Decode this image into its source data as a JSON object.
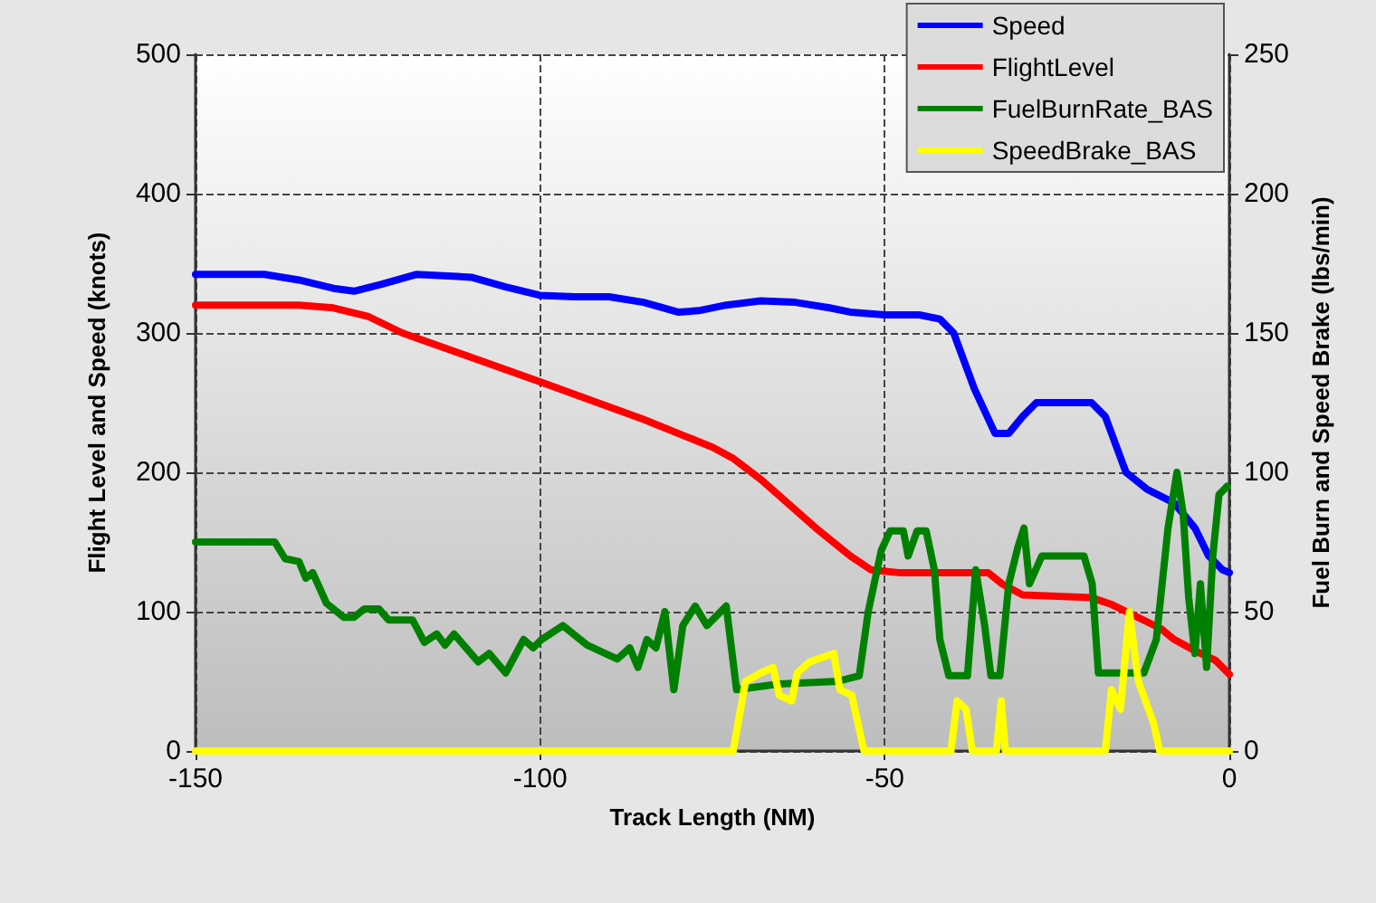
{
  "chart_data": {
    "type": "line",
    "xlabel": "Track Length (NM)",
    "ylabel": "Flight Level and Speed (knots)",
    "y2label": "Fuel Burn and Speed Brake (lbs/min)",
    "xlim": [
      -150,
      0
    ],
    "xticks": [
      -150,
      -100,
      -50,
      0
    ],
    "ylim": [
      0,
      500
    ],
    "yticks": [
      0,
      100,
      200,
      300,
      400,
      500
    ],
    "y2lim": [
      0,
      250
    ],
    "y2ticks": [
      0,
      50,
      100,
      150,
      200,
      250
    ],
    "grid": true,
    "legend": "top right",
    "marker": "none",
    "line_style": "solid",
    "series": [
      {
        "name": "Speed",
        "color": "#0000ff",
        "x": [
          -150,
          -140,
          -135,
          -130,
          -127,
          -123,
          -118,
          -110,
          -105,
          -100,
          -95,
          -90,
          -85,
          -80,
          -77,
          -73,
          -68,
          -63,
          -58,
          -55,
          -50,
          -45,
          -42,
          -40,
          -37,
          -34,
          -32,
          -30,
          -28,
          -20,
          -18,
          -15,
          -12,
          -8,
          -5,
          -3,
          -1,
          0
        ],
        "values": [
          342,
          342,
          338,
          332,
          330,
          335,
          342,
          340,
          333,
          327,
          326,
          326,
          322,
          315,
          316,
          320,
          323,
          322,
          318,
          315,
          313,
          313,
          310,
          300,
          260,
          228,
          228,
          240,
          250,
          250,
          240,
          200,
          188,
          178,
          160,
          140,
          130,
          128
        ]
      },
      {
        "name": "FlightLevel",
        "color": "#ff0000",
        "x": [
          -150,
          -135,
          -130,
          -125,
          -120,
          -100,
          -85,
          -75,
          -72,
          -68,
          -60,
          -55,
          -52,
          -48,
          -35,
          -33,
          -30,
          -20,
          -17,
          -10,
          -8,
          -5,
          -2,
          0
        ],
        "values": [
          320,
          320,
          318,
          312,
          300,
          265,
          238,
          218,
          210,
          195,
          160,
          140,
          130,
          128,
          128,
          120,
          112,
          110,
          105,
          88,
          80,
          72,
          65,
          55
        ]
      },
      {
        "name": "FuelBurnRate_BAS",
        "color": "#008000",
        "axis": "y2",
        "x": [
          -150,
          -138.5,
          -137,
          -135,
          -134,
          -133,
          -131,
          -128.5,
          -127,
          -125.5,
          -123.4,
          -122,
          -118.5,
          -116.8,
          -115,
          -113.8,
          -112.5,
          -109,
          -107.4,
          -105,
          -102.4,
          -101,
          -99.8,
          -96.7,
          -93.2,
          -88.8,
          -87,
          -85.8,
          -84.5,
          -83.2,
          -81.9,
          -80.6,
          -79.3,
          -77.5,
          -75.8,
          -73,
          -71.5,
          -65.5,
          -56.8,
          -53.7,
          -52.4,
          -50.5,
          -49.2,
          -47.3,
          -46.6,
          -45.3,
          -44,
          -42.8,
          -42,
          -40.7,
          -38,
          -36.8,
          -35.5,
          -34.6,
          -33.3,
          -32,
          -30.7,
          -29.8,
          -29,
          -27.2,
          -21.1,
          -19.9,
          -19,
          -12.4,
          -10.6,
          -8.9,
          -7.6,
          -6.7,
          -5.9,
          -5,
          -4.2,
          -3.3,
          -2.4,
          -1.5,
          -0.3
        ],
        "values": [
          75,
          75,
          69,
          68,
          62,
          64,
          53,
          48,
          48,
          51,
          51,
          47,
          47,
          39,
          42,
          38,
          42,
          32,
          35,
          28,
          40,
          37,
          40,
          45,
          38,
          33,
          37,
          30,
          40,
          37,
          50,
          22,
          45,
          52,
          45,
          52,
          22,
          24,
          25,
          27,
          50,
          72,
          79,
          79,
          70,
          79,
          79,
          65,
          40,
          27,
          27,
          65,
          45,
          27,
          27,
          60,
          73,
          80,
          60,
          70,
          70,
          60,
          28,
          28,
          40,
          80,
          100,
          85,
          55,
          35,
          60,
          30,
          70,
          92,
          95
        ]
      },
      {
        "name": "SpeedBrake_BAS",
        "color": "#ffff00",
        "axis": "y2",
        "x": [
          -150,
          -72,
          -70.2,
          -68,
          -66.2,
          -65.3,
          -63.5,
          -62.7,
          -60.9,
          -57.4,
          -56.5,
          -54.8,
          -53,
          -40.4,
          -39.5,
          -38.2,
          -37.3,
          -33.8,
          -33.1,
          -32.5,
          -18,
          -17.1,
          -15.8,
          -14.5,
          -13.2,
          -11,
          -10.1,
          0
        ],
        "values": [
          0,
          0,
          25,
          28,
          30,
          20,
          18,
          28,
          32,
          35,
          22,
          20,
          0,
          0,
          18,
          15,
          0,
          0,
          18,
          0,
          0,
          22,
          15,
          50,
          25,
          10,
          0,
          0
        ]
      }
    ]
  }
}
